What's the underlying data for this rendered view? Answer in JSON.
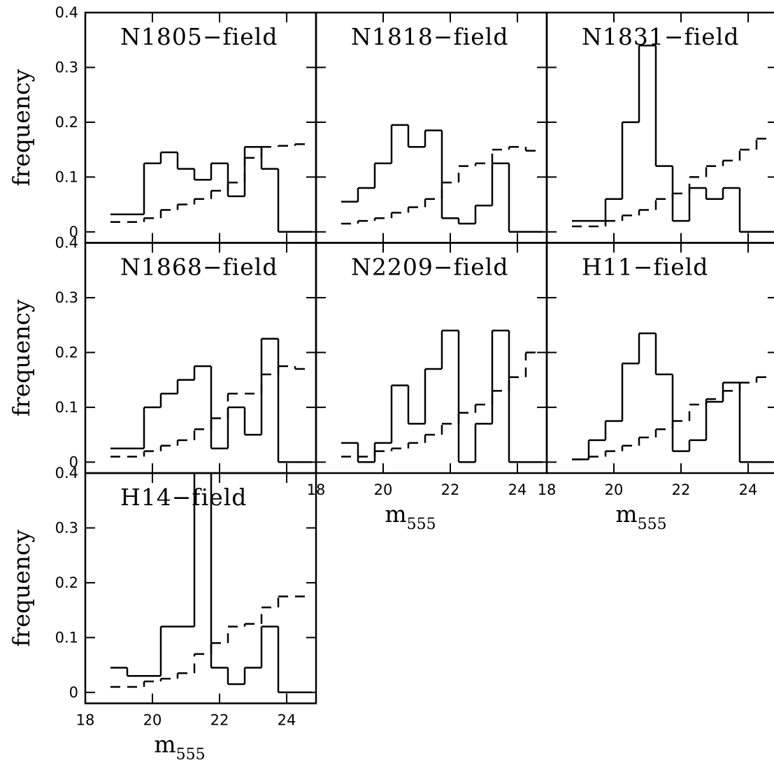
{
  "chart_data": [
    {
      "type": "histogram",
      "title": "N1805−field",
      "ylabel": "frequency",
      "bins": [
        18.75,
        19.25,
        19.75,
        20.25,
        20.75,
        21.25,
        21.75,
        22.25,
        22.75,
        23.25,
        23.75,
        24.25,
        24.75
      ],
      "series": [
        {
          "style": "solid",
          "color": "#000000",
          "values": [
            0.032,
            0.032,
            0.125,
            0.145,
            0.115,
            0.095,
            0.125,
            0.065,
            0.155,
            0.115,
            0,
            0
          ]
        },
        {
          "style": "dashed",
          "color": "#000000",
          "values": [
            0.018,
            0.018,
            0.025,
            0.04,
            0.05,
            0.06,
            0.075,
            0.09,
            0.135,
            0.155,
            0.157,
            0.16
          ]
        }
      ],
      "xlim": [
        18,
        24.875
      ],
      "ylim": [
        -0.02,
        0.4
      ],
      "xticks": [
        18,
        20,
        22,
        24
      ],
      "yticks": [
        0,
        0.1,
        0.2,
        0.3,
        0.4
      ]
    },
    {
      "type": "histogram",
      "title": "N1818−field",
      "bins": [
        18.75,
        19.25,
        19.75,
        20.25,
        20.75,
        21.25,
        21.75,
        22.25,
        22.75,
        23.25,
        23.75,
        24.25,
        24.75
      ],
      "series": [
        {
          "style": "solid",
          "color": "#000000",
          "values": [
            0.055,
            0.08,
            0.125,
            0.195,
            0.155,
            0.185,
            0.025,
            0.015,
            0.048,
            0.125,
            0,
            0
          ]
        },
        {
          "style": "dashed",
          "color": "#000000",
          "values": [
            0.015,
            0.02,
            0.025,
            0.035,
            0.045,
            0.06,
            0.09,
            0.12,
            0.125,
            0.15,
            0.155,
            0.148
          ]
        }
      ],
      "xlim": [
        18,
        24.875
      ],
      "ylim": [
        -0.02,
        0.4
      ],
      "xticks": [
        18,
        20,
        22,
        24
      ],
      "yticks": [
        0,
        0.1,
        0.2,
        0.3,
        0.4
      ]
    },
    {
      "type": "histogram",
      "title": "N1831−field",
      "bins": [
        18.75,
        19.25,
        19.75,
        20.25,
        20.75,
        21.25,
        21.75,
        22.25,
        22.75,
        23.25,
        23.75,
        24.25,
        24.75
      ],
      "series": [
        {
          "style": "solid",
          "color": "#000000",
          "values": [
            0.02,
            0.02,
            0.06,
            0.2,
            0.34,
            0.12,
            0.02,
            0.08,
            0.06,
            0.08,
            0,
            0
          ]
        },
        {
          "style": "dashed",
          "color": "#000000",
          "values": [
            0.01,
            0.01,
            0.02,
            0.03,
            0.04,
            0.06,
            0.07,
            0.1,
            0.12,
            0.13,
            0.15,
            0.17
          ]
        }
      ],
      "xlim": [
        18,
        24.875
      ],
      "ylim": [
        -0.02,
        0.4
      ],
      "xticks": [
        18,
        20,
        22,
        24
      ],
      "yticks": [
        0,
        0.1,
        0.2,
        0.3,
        0.4
      ]
    },
    {
      "type": "histogram",
      "title": "N1868−field",
      "ylabel": "frequency",
      "bins": [
        18.75,
        19.25,
        19.75,
        20.25,
        20.75,
        21.25,
        21.75,
        22.25,
        22.75,
        23.25,
        23.75,
        24.25,
        24.75
      ],
      "series": [
        {
          "style": "solid",
          "color": "#000000",
          "values": [
            0.025,
            0.025,
            0.1,
            0.125,
            0.15,
            0.175,
            0.025,
            0.1,
            0.05,
            0.225,
            0,
            0
          ]
        },
        {
          "style": "dashed",
          "color": "#000000",
          "values": [
            0.01,
            0.01,
            0.02,
            0.03,
            0.04,
            0.06,
            0.08,
            0.125,
            0.125,
            0.16,
            0.175,
            0.17
          ]
        }
      ],
      "xlim": [
        18,
        24.875
      ],
      "ylim": [
        -0.02,
        0.4
      ],
      "xticks": [
        18,
        20,
        22,
        24
      ],
      "yticks": [
        0,
        0.1,
        0.2,
        0.3,
        0.4
      ]
    },
    {
      "type": "histogram",
      "title": "N2209−field",
      "xlabel": {
        "text": "m",
        "subscript": "555"
      },
      "bins": [
        18.75,
        19.25,
        19.75,
        20.25,
        20.75,
        21.25,
        21.75,
        22.25,
        22.75,
        23.25,
        23.75,
        24.25,
        24.75
      ],
      "series": [
        {
          "style": "solid",
          "color": "#000000",
          "values": [
            0.035,
            0,
            0.035,
            0.14,
            0.07,
            0.17,
            0.24,
            0,
            0.07,
            0.24,
            0,
            0
          ]
        },
        {
          "style": "dashed",
          "color": "#000000",
          "values": [
            0.01,
            0.01,
            0.02,
            0.025,
            0.035,
            0.05,
            0.07,
            0.09,
            0.105,
            0.13,
            0.155,
            0.2
          ]
        }
      ],
      "xlim": [
        18,
        24.875
      ],
      "ylim": [
        -0.02,
        0.4
      ],
      "xticks": [
        18,
        20,
        22,
        24
      ],
      "yticks": [
        0,
        0.1,
        0.2,
        0.3,
        0.4
      ]
    },
    {
      "type": "histogram",
      "title": "H11−field",
      "xlabel": {
        "text": "m",
        "subscript": "555"
      },
      "bins": [
        18.75,
        19.25,
        19.75,
        20.25,
        20.75,
        21.25,
        21.75,
        22.25,
        22.75,
        23.25,
        23.75,
        24.25,
        24.75
      ],
      "series": [
        {
          "style": "solid",
          "color": "#000000",
          "values": [
            0.005,
            0.04,
            0.075,
            0.18,
            0.235,
            0.16,
            0.02,
            0.04,
            0.11,
            0.145,
            0,
            0
          ]
        },
        {
          "style": "dashed",
          "color": "#000000",
          "values": [
            0.005,
            0.01,
            0.02,
            0.03,
            0.045,
            0.06,
            0.075,
            0.105,
            0.115,
            0.13,
            0.145,
            0.155
          ]
        }
      ],
      "xlim": [
        18,
        24.875
      ],
      "ylim": [
        -0.02,
        0.4
      ],
      "xticks": [
        18,
        20,
        22,
        24
      ],
      "yticks": [
        0,
        0.1,
        0.2,
        0.3,
        0.4
      ]
    },
    {
      "type": "histogram",
      "title": "H14−field",
      "ylabel": "frequency",
      "xlabel": {
        "text": "m",
        "subscript": "555"
      },
      "bins": [
        18.75,
        19.25,
        19.75,
        20.25,
        20.75,
        21.25,
        21.75,
        22.25,
        22.75,
        23.25,
        23.75,
        24.25,
        24.75
      ],
      "series": [
        {
          "style": "solid",
          "color": "#000000",
          "values": [
            0.045,
            0.03,
            0.03,
            0.12,
            0.12,
            0.42,
            0.045,
            0.015,
            0.045,
            0.12,
            0,
            0
          ]
        },
        {
          "style": "dashed",
          "color": "#000000",
          "values": [
            0.01,
            0.01,
            0.02,
            0.025,
            0.035,
            0.07,
            0.09,
            0.12,
            0.125,
            0.155,
            0.175,
            0.175
          ]
        }
      ],
      "xlim": [
        18,
        24.875
      ],
      "ylim": [
        -0.02,
        0.4
      ],
      "xticks": [
        18,
        20,
        22,
        24
      ],
      "yticks": [
        0,
        0.1,
        0.2,
        0.3,
        0.4
      ]
    }
  ]
}
